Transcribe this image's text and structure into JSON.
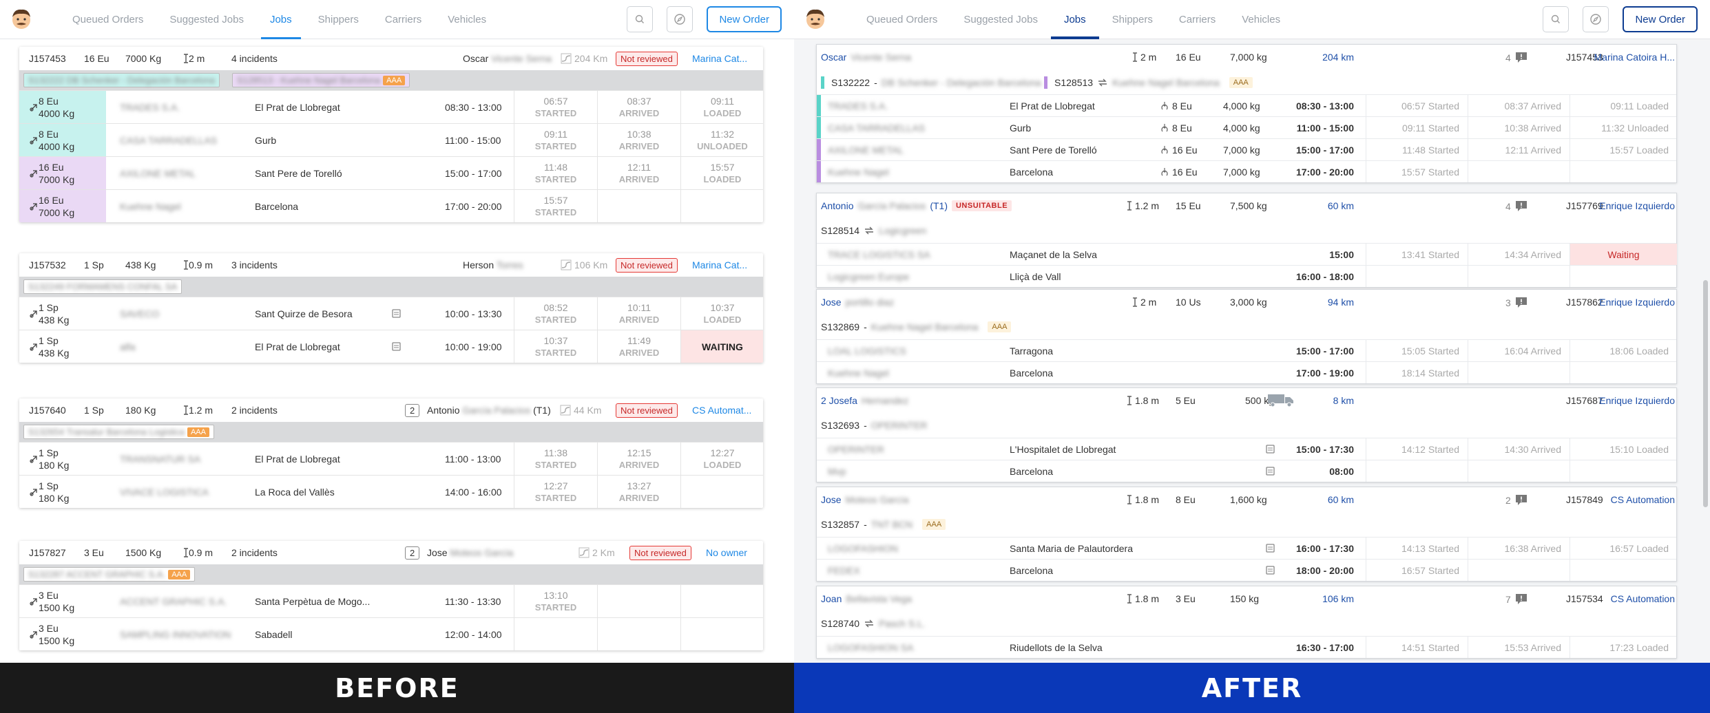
{
  "nav": {
    "tabs": [
      "Queued Orders",
      "Suggested Jobs",
      "Jobs",
      "Shippers",
      "Carriers",
      "Vehicles"
    ],
    "active": "Jobs",
    "new_order": "New Order"
  },
  "labels": {
    "before": "BEFORE",
    "after": "AFTER",
    "started": "STARTED",
    "arrived": "ARRIVED",
    "loaded": "LOADED",
    "unloaded": "UNLOADED",
    "waiting": "WAITING",
    "not_reviewed": "Not reviewed",
    "aaa": "AAA",
    "unsuitable": "UNSUITABLE",
    "waiting_after": "Waiting"
  },
  "before": {
    "jobs": [
      {
        "id": "J157453",
        "qty": "16 Eu",
        "weight": "7000 Kg",
        "length": "2 m",
        "incidents": "4 incidents",
        "driver": "Oscar",
        "driver_blur": "Vicente Serna",
        "km": "204 Km",
        "owner": "Marina Cat...",
        "refs": [
          {
            "text": "S132222 DB Schenker - Delegación Barcelona",
            "color": "#c7f2ee",
            "aaa": false
          },
          {
            "text": "S128513 - Kuehne Nagel Barcelona",
            "color": "#ead9f5",
            "aaa": true
          }
        ],
        "stops": [
          {
            "qty": "8 Eu",
            "weight": "4000 Kg",
            "company": "TRADES S.A.",
            "city": "El Prat de Llobregat",
            "window": "08:30 - 13:00",
            "s1": "06:57",
            "s2": "08:37",
            "s3": "09:11",
            "s3l": "LOADED",
            "color": "#c7f2ee"
          },
          {
            "qty": "8 Eu",
            "weight": "4000 Kg",
            "company": "CASA TARRADELLAS",
            "city": "Gurb",
            "window": "11:00 - 15:00",
            "s1": "09:11",
            "s2": "10:38",
            "s3": "11:32",
            "s3l": "UNLOADED",
            "color": "#c7f2ee"
          },
          {
            "qty": "16 Eu",
            "weight": "7000 Kg",
            "company": "AXILONE METAL",
            "city": "Sant Pere de Torelló",
            "window": "15:00 - 17:00",
            "s1": "11:48",
            "s2": "12:11",
            "s3": "15:57",
            "s3l": "LOADED",
            "color": "#ead9f5"
          },
          {
            "qty": "16 Eu",
            "weight": "7000 Kg",
            "company": "Kuehne Nagel",
            "city": "Barcelona",
            "window": "17:00 - 20:00",
            "s1": "15:57",
            "s2": "",
            "s3": "",
            "s3l": "",
            "color": "#ead9f5"
          }
        ]
      },
      {
        "id": "J157532",
        "qty": "1 Sp",
        "weight": "438 Kg",
        "length": "0.9 m",
        "incidents": "3 incidents",
        "driver": "Herson",
        "driver_blur": "Torres",
        "km": "106 Km",
        "owner": "Marina Cat...",
        "refs": [
          {
            "text": "S132249 FORMAMENS CONFAL SA",
            "color": "#ffffff",
            "aaa": false
          }
        ],
        "stops": [
          {
            "qty": "1 Sp",
            "weight": "438 Kg",
            "company": "SAVECO",
            "city": "Sant Quirze de Besora",
            "window": "10:00 - 13:30",
            "s1": "08:52",
            "s2": "10:11",
            "s3": "10:37",
            "s3l": "LOADED",
            "color": "#ffffff"
          },
          {
            "qty": "1 Sp",
            "weight": "438 Kg",
            "company": "alfa",
            "city": "El Prat de Llobregat",
            "window": "10:00 - 19:00",
            "s1": "10:37",
            "s2": "11:49",
            "s3": "",
            "s3l": "WAITING",
            "color": "#ffffff"
          }
        ]
      },
      {
        "id": "J157640",
        "qty": "1 Sp",
        "weight": "180 Kg",
        "length": "1.2 m",
        "incidents": "2 incidents",
        "count": "2",
        "driver": "Antonio",
        "driver_blur": "García Palacios",
        "driver_suffix": "(T1)",
        "km": "44 Km",
        "owner": "CS Automat...",
        "refs": [
          {
            "text": "S132654 Transalur Barcelona Logistica",
            "color": "#ffffff",
            "aaa": true
          }
        ],
        "stops": [
          {
            "qty": "1 Sp",
            "weight": "180 Kg",
            "company": "TRANSNATUR SA",
            "city": "El Prat de Llobregat",
            "window": "11:00 - 13:00",
            "s1": "11:38",
            "s2": "12:15",
            "s3": "12:27",
            "s3l": "LOADED",
            "color": "#ffffff"
          },
          {
            "qty": "1 Sp",
            "weight": "180 Kg",
            "company": "VIVACE LOGISTICA",
            "city": "La Roca del Vallès",
            "window": "14:00 - 16:00",
            "s1": "12:27",
            "s2": "13:27",
            "s3": "",
            "s3l": "",
            "color": "#ffffff"
          }
        ]
      },
      {
        "id": "J157827",
        "qty": "3 Eu",
        "weight": "1500 Kg",
        "length": "0.9 m",
        "incidents": "2 incidents",
        "count": "2",
        "driver": "Jose",
        "driver_blur": "Moteos García",
        "km": "2 Km",
        "owner": "No owner",
        "refs": [
          {
            "text": "S132287 ACCENT GRAPHIC S.A.",
            "color": "#ffffff",
            "aaa": true
          }
        ],
        "stops": [
          {
            "qty": "3 Eu",
            "weight": "1500 Kg",
            "company": "ACCENT GRAPHIC S.A.",
            "city": "Santa Perpètua de Mogo...",
            "window": "11:30 - 13:30",
            "s1": "13:10",
            "s2": "",
            "s3": "",
            "s3l": "",
            "color": "#ffffff"
          },
          {
            "qty": "3 Eu",
            "weight": "1500 Kg",
            "company": "SAMPLING INNOVATION",
            "city": "Sabadell",
            "window": "12:00 - 14:00",
            "s1": "",
            "s2": "",
            "s3": "",
            "s3l": "",
            "color": "#ffffff"
          }
        ]
      }
    ]
  },
  "after": {
    "jobs": [
      {
        "driver": "Oscar",
        "driver_blur": "Vicente Serna",
        "length": "2 m",
        "qty": "16 Eu",
        "weight": "7,000 kg",
        "km": "204 km",
        "incidents": "4",
        "id": "J157453",
        "owner": "Marina Catoira H...",
        "refs": [
          {
            "text": "S132222",
            "sep": "-",
            "name": "DB Schenker - Delegación Barcelona",
            "color": "#5ad3c8",
            "swap": false,
            "aaa": false
          },
          {
            "text": "S128513",
            "sep": "",
            "name": "Kuehne Nagel Barcelona",
            "color": "#b98de0",
            "swap": true,
            "aaa": true
          }
        ],
        "stops": [
          {
            "company": "TRADES S.A.",
            "city": "El Prat de Llobregat",
            "qty": "8 Eu",
            "weight": "4,000 kg",
            "window": "08:30 - 13:00",
            "s1": "06:57 Started",
            "s2": "08:37 Arrived",
            "s3": "09:11 Loaded",
            "color": "#5ad3c8",
            "icon": "load"
          },
          {
            "company": "CASA TARRADELLAS",
            "city": "Gurb",
            "qty": "8 Eu",
            "weight": "4,000 kg",
            "window": "11:00 - 15:00",
            "s1": "09:11 Started",
            "s2": "10:38 Arrived",
            "s3": "11:32 Unloaded",
            "color": "#5ad3c8",
            "icon": "unload"
          },
          {
            "company": "AXILONE METAL",
            "city": "Sant Pere de Torelló",
            "qty": "16 Eu",
            "weight": "7,000 kg",
            "window": "15:00 - 17:00",
            "s1": "11:48 Started",
            "s2": "12:11 Arrived",
            "s3": "15:57 Loaded",
            "color": "#b98de0",
            "icon": "load"
          },
          {
            "company": "Kuehne Nagel",
            "city": "Barcelona",
            "qty": "16 Eu",
            "weight": "7,000 kg",
            "window": "17:00 - 20:00",
            "s1": "15:57 Started",
            "s2": "",
            "s3": "",
            "color": "#b98de0",
            "icon": "unload"
          }
        ]
      },
      {
        "driver": "Antonio",
        "driver_blur": "García Palacios",
        "driver_suffix": "(T1)",
        "badge": "UNSUITABLE",
        "length": "1.2 m",
        "qty": "15 Eu",
        "weight": "7,500 kg",
        "km": "60 km",
        "incidents": "4",
        "id": "J157769",
        "owner": "Enrique Izquierdo",
        "refs": [
          {
            "text": "S128514",
            "sep": "",
            "name": "Logicgreen",
            "color": "",
            "swap": true,
            "aaa": false
          }
        ],
        "stops": [
          {
            "company": "TRACE LOGISTICS SA",
            "city": "Maçanet de la Selva",
            "qty": "",
            "weight": "",
            "window": "15:00",
            "s1": "13:41 Started",
            "s2": "14:34 Arrived",
            "s3": "Waiting",
            "color": "",
            "icon": ""
          },
          {
            "company": "Logicgreen Europe",
            "city": "Lliçà de Vall",
            "qty": "",
            "weight": "",
            "window": "16:00 - 18:00",
            "s1": "",
            "s2": "",
            "s3": "",
            "color": "",
            "icon": ""
          }
        ]
      },
      {
        "driver": "Jose",
        "driver_blur": "portillo diaz",
        "length": "2 m",
        "qty": "10 Us",
        "weight": "3,000 kg",
        "km": "94 km",
        "incidents": "3",
        "id": "J157862",
        "owner": "Enrique Izquierdo",
        "refs": [
          {
            "text": "S132869",
            "sep": "-",
            "name": "Kuehne Nagel Barcelona",
            "color": "",
            "swap": false,
            "aaa": true
          }
        ],
        "stops": [
          {
            "company": "LOAL LOGISTICS",
            "city": "Tarragona",
            "qty": "",
            "weight": "",
            "window": "15:00 - 17:00",
            "s1": "15:05 Started",
            "s2": "16:04 Arrived",
            "s3": "18:06 Loaded",
            "color": "",
            "icon": ""
          },
          {
            "company": "Kuehne Nagel",
            "city": "Barcelona",
            "qty": "",
            "weight": "",
            "window": "17:00 - 19:00",
            "s1": "18:14 Started",
            "s2": "",
            "s3": "",
            "color": "",
            "icon": ""
          }
        ]
      },
      {
        "driver": "2 Josefa",
        "driver_blur": "Hernandez",
        "length": "1.8 m",
        "qty": "5 Eu",
        "weight": "500 kg",
        "km": "8 km",
        "incidents": "",
        "truck": true,
        "id": "J157687",
        "owner": "Enrique Izquierdo",
        "refs": [
          {
            "text": "S132693",
            "sep": "-",
            "name": "OPERINTER",
            "color": "",
            "swap": false,
            "aaa": false
          }
        ],
        "stops": [
          {
            "company": "OPERINTER",
            "city": "L'Hospitalet de Llobregat",
            "qty": "",
            "weight": "",
            "window": "15:00 - 17:30",
            "s1": "14:12 Started",
            "s2": "14:30 Arrived",
            "s3": "15:10 Loaded",
            "color": "",
            "icon": "note"
          },
          {
            "company": "Mvp",
            "city": "Barcelona",
            "qty": "",
            "weight": "",
            "window": "08:00",
            "s1": "",
            "s2": "",
            "s3": "",
            "color": "",
            "icon": "note"
          }
        ]
      },
      {
        "driver": "Jose",
        "driver_blur": "Moteos García",
        "length": "1.8 m",
        "qty": "8 Eu",
        "weight": "1,600 kg",
        "km": "60 km",
        "incidents": "2",
        "id": "J157849",
        "owner": "CS Automation",
        "refs": [
          {
            "text": "S132857",
            "sep": "-",
            "name": "TNT BCN",
            "color": "",
            "swap": false,
            "aaa": true
          }
        ],
        "stops": [
          {
            "company": "LOGOFASHION",
            "city": "Santa Maria de Palautordera",
            "qty": "",
            "weight": "",
            "window": "16:00 - 17:30",
            "s1": "14:13 Started",
            "s2": "16:38 Arrived",
            "s3": "16:57 Loaded",
            "color": "",
            "icon": "note"
          },
          {
            "company": "FEDEX",
            "city": "Barcelona",
            "qty": "",
            "weight": "",
            "window": "18:00 - 20:00",
            "s1": "16:57 Started",
            "s2": "",
            "s3": "",
            "color": "",
            "icon": "note"
          }
        ]
      },
      {
        "driver": "Joan",
        "driver_blur": "Bellavista Vega",
        "length": "1.8 m",
        "qty": "3 Eu",
        "weight": "150 kg",
        "km": "106 km",
        "incidents": "7",
        "id": "J157534",
        "owner": "CS Automation",
        "refs": [
          {
            "text": "S128740",
            "sep": "",
            "name": "Pasch S.L.",
            "color": "",
            "swap": true,
            "aaa": false
          }
        ],
        "stops": [
          {
            "company": "LOGOFASHION SA",
            "city": "Riudellots de la Selva",
            "qty": "",
            "weight": "",
            "window": "16:30 - 17:00",
            "s1": "14:51 Started",
            "s2": "15:53 Arrived",
            "s3": "17:23 Loaded",
            "color": "",
            "icon": ""
          }
        ]
      }
    ]
  }
}
